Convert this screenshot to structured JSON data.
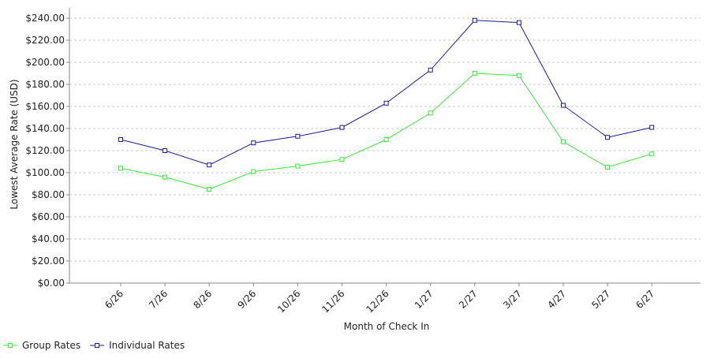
{
  "chart_data": {
    "type": "line",
    "categories": [
      "6/26",
      "7/26",
      "8/26",
      "9/26",
      "10/26",
      "11/26",
      "12/26",
      "1/27",
      "2/27",
      "3/27",
      "4/27",
      "5/27",
      "6/27"
    ],
    "series": [
      {
        "name": "Group Rates",
        "color": "#33ee33",
        "marker": "open-square",
        "values": [
          104,
          96,
          85,
          101,
          106,
          112,
          130,
          154,
          190,
          188,
          128,
          105,
          117
        ]
      },
      {
        "name": "Individual Rates",
        "color": "#1a1a9a",
        "marker": "open-square",
        "values": [
          130,
          120,
          107,
          127,
          133,
          141,
          163,
          193,
          238,
          236,
          161,
          132,
          141
        ]
      }
    ],
    "xlabel": "Month of Check In",
    "ylabel": "Lowest Average Rate (USD)",
    "ylim": [
      0,
      240
    ],
    "yticks": [
      0,
      20,
      40,
      60,
      80,
      100,
      120,
      140,
      160,
      180,
      200,
      220,
      240
    ],
    "y_tick_labels": [
      "$0.00",
      "$20.00",
      "$40.00",
      "$60.00",
      "$80.00",
      "$100.00",
      "$120.00",
      "$140.00",
      "$160.00",
      "$180.00",
      "$200.00",
      "$220.00",
      "$240.00"
    ],
    "grid": true,
    "legend_position": "bottom-left"
  }
}
